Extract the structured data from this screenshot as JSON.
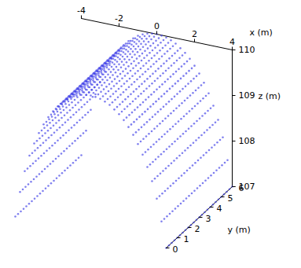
{
  "chart_data": {
    "type": "scatter3d",
    "xlabel": "x (m)",
    "ylabel": "y (m)",
    "zlabel": "z (m)",
    "xlim": [
      -4,
      4
    ],
    "xticks": [
      -4,
      -2,
      0,
      2,
      4
    ],
    "ylim": [
      0,
      6
    ],
    "yticks": [
      0,
      1,
      2,
      3,
      4,
      5,
      6
    ],
    "zlim": [
      107,
      110
    ],
    "zticks": [
      107,
      108,
      109,
      110
    ],
    "color": "#3a3ae6",
    "surface": {
      "profile_x": [
        -4,
        -3.75,
        -3.5,
        -3.25,
        -3,
        -2.75,
        -2.5,
        -2.25,
        -2,
        -1.75,
        -1.5,
        -1.25,
        -1,
        -0.75,
        -0.5,
        -0.25,
        0,
        0.25,
        0.5,
        0.75,
        1,
        1.25,
        1.5,
        1.75,
        2,
        2.25,
        2.5,
        2.75,
        3,
        3.25,
        3.5,
        3.75,
        4
      ],
      "profile_z": [
        107.0,
        107.56,
        108.04,
        108.4,
        108.69,
        108.94,
        109.15,
        109.33,
        109.48,
        109.61,
        109.72,
        109.8,
        109.88,
        109.93,
        109.97,
        109.99,
        110.0,
        109.99,
        109.97,
        109.93,
        109.88,
        109.8,
        109.72,
        109.61,
        109.48,
        109.33,
        109.15,
        108.94,
        108.69,
        108.4,
        108.04,
        107.56,
        107.0
      ],
      "y": [
        0,
        0.25,
        0.5,
        0.75,
        1,
        1.25,
        1.5,
        1.75,
        2,
        2.25,
        2.5,
        2.75,
        3,
        3.25,
        3.5,
        3.75,
        4,
        4.25,
        4.5,
        4.75,
        5,
        5.25,
        5.5,
        5.75,
        6
      ]
    }
  }
}
